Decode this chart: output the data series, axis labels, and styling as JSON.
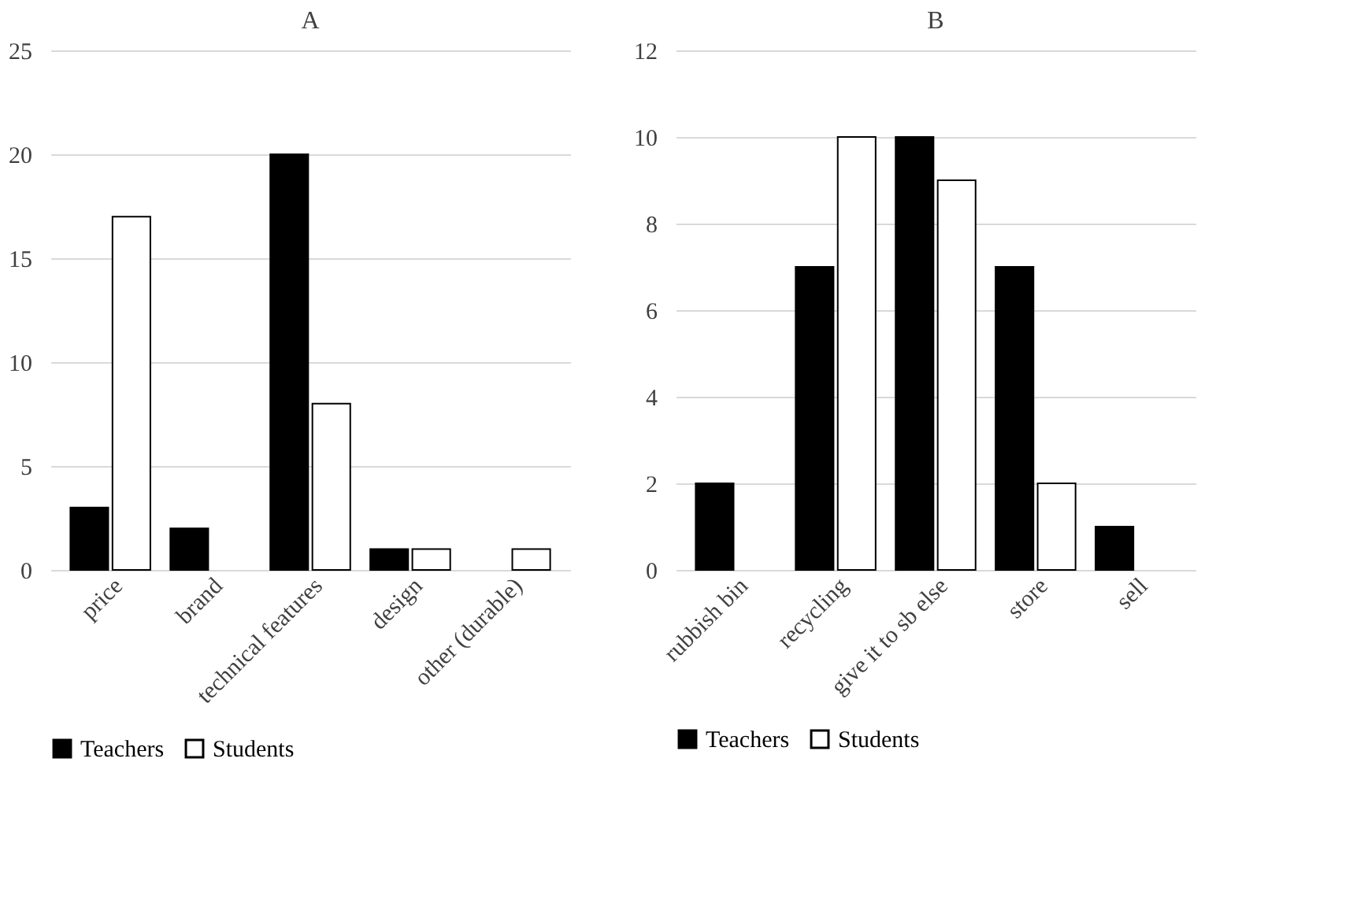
{
  "chart_data": [
    {
      "type": "bar",
      "title": "A",
      "categories": [
        "price",
        "brand",
        "technical features",
        "design",
        "other (durable)"
      ],
      "series": [
        {
          "name": "Teachers",
          "color": "#000000",
          "values": [
            3,
            2,
            20,
            1,
            0
          ]
        },
        {
          "name": "Students",
          "color": "#ffffff",
          "values": [
            17,
            0,
            8,
            1,
            1
          ]
        }
      ],
      "ylim": [
        0,
        25
      ],
      "yticks": [
        0,
        5,
        10,
        15,
        20,
        25
      ],
      "grid": "y",
      "legend": "bottom"
    },
    {
      "type": "bar",
      "title": "B",
      "categories": [
        "rubbish bin",
        "recycling",
        "give it to sb else",
        "store",
        "sell"
      ],
      "series": [
        {
          "name": "Teachers",
          "color": "#000000",
          "values": [
            2,
            7,
            10,
            7,
            1
          ]
        },
        {
          "name": "Students",
          "color": "#ffffff",
          "values": [
            0,
            10,
            9,
            2,
            0
          ]
        }
      ],
      "ylim": [
        0,
        12
      ],
      "yticks": [
        0,
        2,
        4,
        6,
        8,
        10,
        12
      ],
      "grid": "y",
      "legend": "bottom"
    }
  ]
}
